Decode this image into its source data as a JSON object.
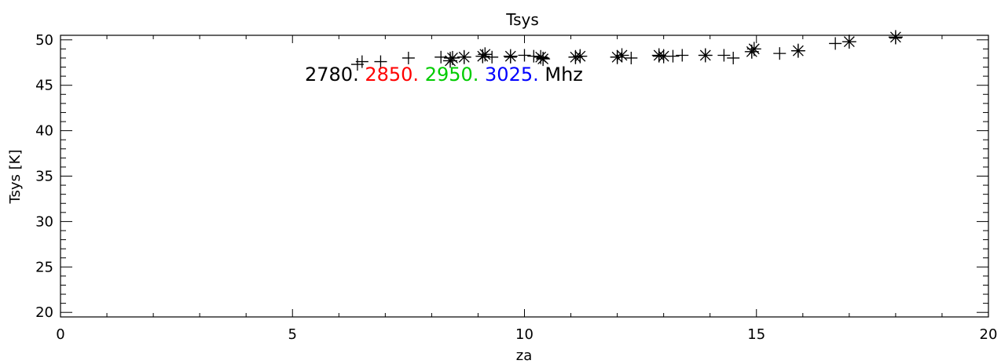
{
  "chart_data": {
    "type": "scatter",
    "title": "Tsys",
    "xlabel": "za",
    "ylabel": "Tsys [K]",
    "xlim": [
      0,
      20
    ],
    "ylim": [
      19.5,
      50.5
    ],
    "xticks": [
      "0",
      "5",
      "10",
      "15",
      "20"
    ],
    "yticks": [
      "20",
      "25",
      "30",
      "35",
      "40",
      "45",
      "50"
    ],
    "grid": false,
    "legend": {
      "placement": "top-left",
      "entries": [
        {
          "label": "2780.",
          "color": "#000000"
        },
        {
          "label": "2850.",
          "color": "#ff0000"
        },
        {
          "label": "2950.",
          "color": "#00cc00"
        },
        {
          "label": "3025.",
          "color": "#0000ff"
        }
      ],
      "suffix": "Mhz"
    },
    "series": [
      {
        "marker": "plus",
        "color": "#000000",
        "x": [
          6.4,
          6.5,
          6.9,
          7.5,
          8.2,
          8.4,
          8.7,
          9.1,
          9.3,
          9.7,
          10.0,
          10.2,
          10.4,
          11.1,
          11.2,
          12.0,
          12.3,
          12.9,
          13.2,
          13.4,
          13.9,
          14.3,
          14.5,
          14.9,
          15.5,
          15.9,
          16.7,
          17.0,
          18.0
        ],
        "y": [
          47.3,
          47.6,
          47.6,
          48.0,
          48.1,
          48.0,
          48.1,
          48.2,
          48.1,
          48.1,
          48.3,
          48.2,
          48.0,
          48.1,
          48.2,
          48.1,
          48.0,
          48.2,
          48.2,
          48.3,
          48.3,
          48.3,
          48.0,
          48.7,
          48.5,
          48.8,
          49.6,
          49.8,
          50.2
        ]
      },
      {
        "marker": "asterisk",
        "color": "#000000",
        "x": [
          8.4,
          8.45,
          8.7,
          9.1,
          9.15,
          9.7,
          10.35,
          10.4,
          11.1,
          11.2,
          12.0,
          12.1,
          12.9,
          13.0,
          13.9,
          14.9,
          14.95,
          15.9,
          17.0,
          18.0
        ],
        "y": [
          47.7,
          48.0,
          48.1,
          48.2,
          48.4,
          48.2,
          48.1,
          47.9,
          48.1,
          48.2,
          48.1,
          48.3,
          48.3,
          48.2,
          48.3,
          48.7,
          49.0,
          48.8,
          49.8,
          50.3
        ]
      }
    ]
  }
}
